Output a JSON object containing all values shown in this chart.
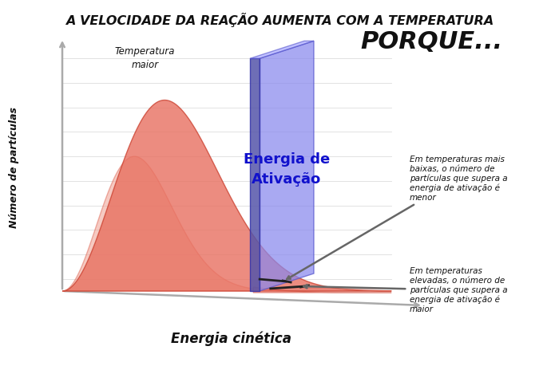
{
  "title_line1": "A VELOCIDADE DA REAÇÃO AUMENTA COM A TEMPERATURA",
  "title_line2": "PORQUE...",
  "ylabel": "Número de partículas",
  "xlabel": "Energia cinética",
  "activation_label": "Energia de\nAtivação",
  "temp_maior_label": "Temperatura\nmaior",
  "annotation_low_temp": "Em temperaturas mais\nbaixas, o número de\npartículas que supera a\nenergia de ativação é\nmenor",
  "annotation_high_temp": "Em temperaturas\nelevadas, o número de\npartículas que supera a\nenergia de ativação é\nmaior",
  "bg_color": "#ffffff",
  "fill_high_temp": "#e87060",
  "fill_low_temp": "#f0a090",
  "activation_panel_color": "#8888ee",
  "activation_panel_dark": "#5555aa",
  "activation_text_color": "#1111cc",
  "grid_color": "#dddddd",
  "axis_color": "#aaaaaa",
  "arrow_color": "#666666",
  "text_color": "#111111"
}
